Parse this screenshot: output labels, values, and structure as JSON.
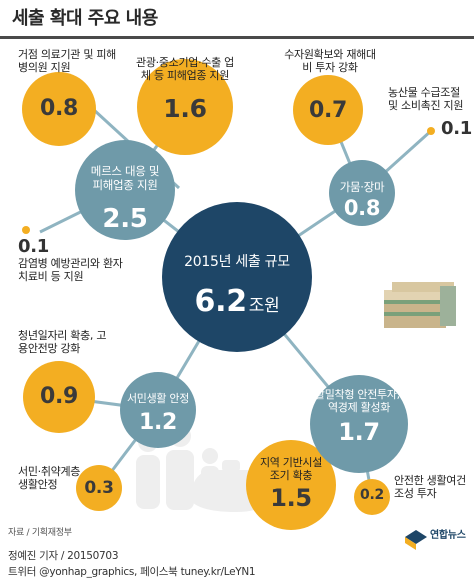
{
  "title": "세출 확대 주요 내용",
  "center": {
    "label": "2015년 세출 규모",
    "value": "6.2",
    "unit": "조원"
  },
  "categories": [
    {
      "name": "메르스 대응 및 피해업종 지원",
      "value": "2.5",
      "items": [
        {
          "label": "거점 의료기관 및 피해 병의원 지원",
          "value": "0.8"
        },
        {
          "label": "관광·중소기업·수출 업체 등 피해업종 지원",
          "value": "1.6"
        },
        {
          "label": "감염병 예방관리와 환자 치료비 등 지원",
          "value": "0.1"
        }
      ]
    },
    {
      "name": "가뭄·장마",
      "value": "0.8",
      "items": [
        {
          "label": "수자원확보와 재해대비 투자 강화",
          "value": "0.7"
        },
        {
          "label": "농산물 수급조절 및 소비촉진 지원",
          "value": "0.1"
        }
      ]
    },
    {
      "name": "서민생활 안정",
      "value": "1.2",
      "items": [
        {
          "label": "청년일자리 확충, 고용안전망 강화",
          "value": "0.9"
        },
        {
          "label": "서민·취약계층 생활안정",
          "value": "0.3"
        }
      ]
    },
    {
      "name": "생활밀착형 안전투자, 지역경제 활성화",
      "value": "1.7",
      "items": [
        {
          "label": "지역 기반시설 조기 확충",
          "value": "1.5"
        },
        {
          "label": "안전한 생활여건 조성 투자",
          "value": "0.2"
        }
      ]
    }
  ],
  "source": "자료 / 기획재정부",
  "credit": "정예진 기자 / 20150703",
  "sns": "트위터 @yonhap_graphics, 페이스북 tuney.kr/LeYN1",
  "brand": "연합뉴스",
  "colors": {
    "background": "#ffffff",
    "title_bar": "#4a4a4a",
    "center_navy": "#1e4667",
    "category_teal": "#6f9aa9",
    "connector": "#8fb4c1",
    "gold": "#f3ae22",
    "text": "#222222"
  }
}
